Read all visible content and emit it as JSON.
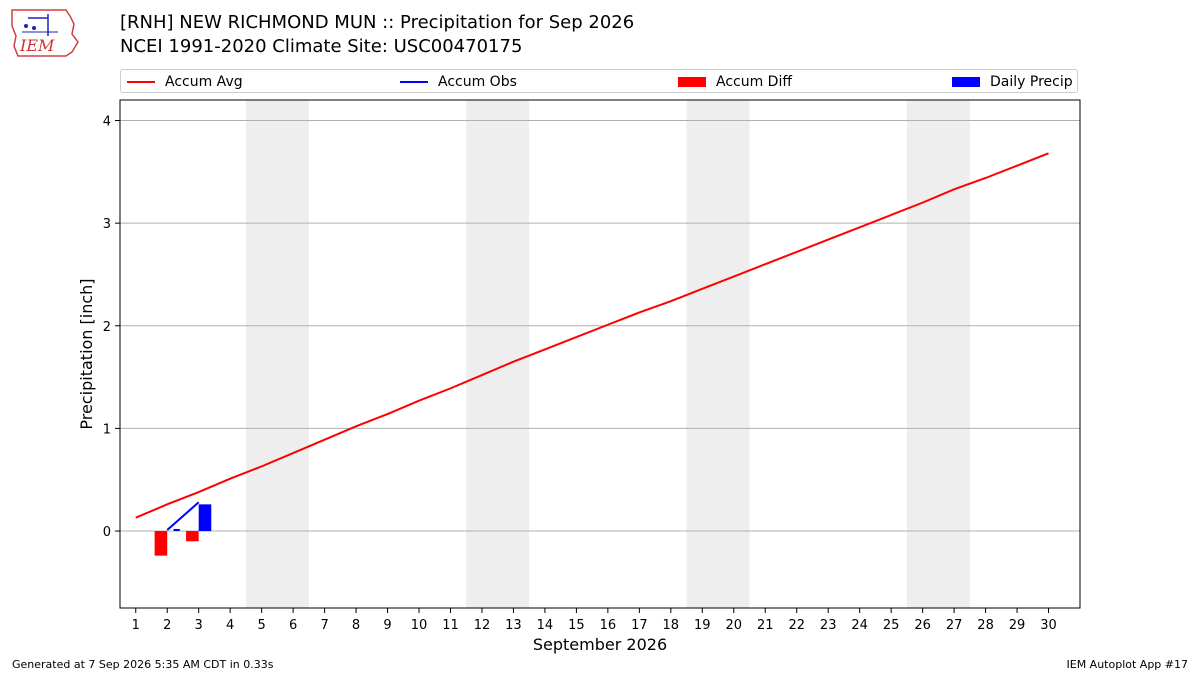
{
  "header": {
    "title_line1": "[RNH] NEW RICHMOND MUN :: Precipitation for Sep 2026",
    "title_line2": "NCEI 1991-2020 Climate Site: USC00470175",
    "logo_text": "IEM"
  },
  "footer": {
    "generated": "Generated at 7 Sep 2026 5:35 AM CDT in 0.33s",
    "app": "IEM Autoplot App #17"
  },
  "chart_data": {
    "type": "line",
    "xlabel": "September 2026",
    "ylabel": "Precipitation [inch]",
    "xlim": [
      0.5,
      31
    ],
    "ylim": [
      -0.75,
      4.2
    ],
    "x_ticks": [
      1,
      2,
      3,
      4,
      5,
      6,
      7,
      8,
      9,
      10,
      11,
      12,
      13,
      14,
      15,
      16,
      17,
      18,
      19,
      20,
      21,
      22,
      23,
      24,
      25,
      26,
      27,
      28,
      29,
      30
    ],
    "y_ticks": [
      0,
      1,
      2,
      3,
      4
    ],
    "grid": "horizontal",
    "legend_position": "top",
    "weekend_shading": [
      [
        4.5,
        6.5
      ],
      [
        11.5,
        13.5
      ],
      [
        18.5,
        20.5
      ],
      [
        25.5,
        27.5
      ]
    ],
    "series": [
      {
        "name": "Accum Avg",
        "kind": "line",
        "color": "#ff0000",
        "x": [
          1,
          2,
          3,
          4,
          5,
          6,
          7,
          8,
          9,
          10,
          11,
          12,
          13,
          14,
          15,
          16,
          17,
          18,
          19,
          20,
          21,
          22,
          23,
          24,
          25,
          26,
          27,
          28,
          29,
          30
        ],
        "values": [
          0.13,
          0.26,
          0.38,
          0.51,
          0.63,
          0.76,
          0.89,
          1.02,
          1.14,
          1.27,
          1.39,
          1.52,
          1.65,
          1.77,
          1.89,
          2.01,
          2.13,
          2.24,
          2.36,
          2.48,
          2.6,
          2.72,
          2.84,
          2.96,
          3.08,
          3.2,
          3.33,
          3.44,
          3.56,
          3.68
        ]
      },
      {
        "name": "Accum Obs",
        "kind": "line",
        "color": "#0000ff",
        "x": [
          2,
          3
        ],
        "values": [
          0.01,
          0.28
        ]
      },
      {
        "name": "Accum Diff",
        "kind": "bar",
        "color": "#ff0000",
        "x": [
          1.8,
          2.8
        ],
        "values": [
          -0.24,
          -0.1
        ]
      },
      {
        "name": "Daily Precip",
        "kind": "bar",
        "color": "#0000ff",
        "x": [
          3.2
        ],
        "values": [
          0.26
        ]
      }
    ]
  }
}
